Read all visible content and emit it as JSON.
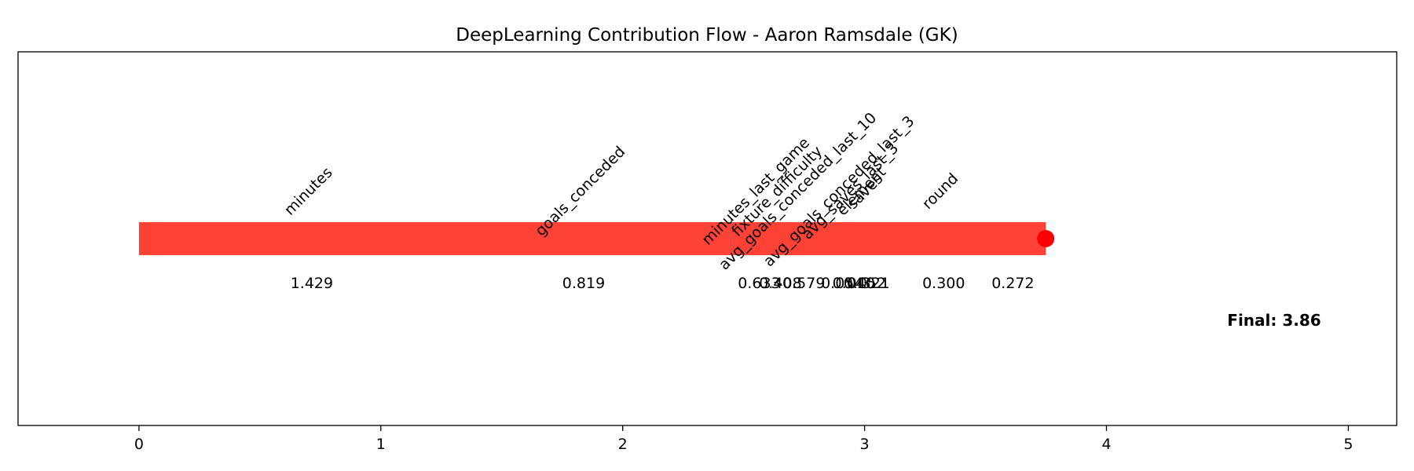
{
  "chart_data": {
    "type": "bar",
    "orientation": "horizontal-waterfall",
    "title": "DeepLearning Contribution Flow - Aaron Ramsdale (GK)",
    "xlabel": "",
    "ylabel": "",
    "xlim": [
      -0.5,
      5.2
    ],
    "xticks": [
      0,
      1,
      2,
      3,
      4,
      5
    ],
    "grid": false,
    "colors": {
      "positive": "#ff4136",
      "negative": "#0074d9",
      "marker": "#ff0000"
    },
    "steps": [
      {
        "feature": "minutes",
        "value": 1.429,
        "label": "1.429",
        "sign": "positive"
      },
      {
        "feature": "goals_conceded",
        "value": 0.819,
        "label": "0.819",
        "sign": "positive"
      },
      {
        "feature": "minutes_last_game",
        "value": 0.633,
        "label": "0.633",
        "sign": "positive"
      },
      {
        "feature": "avg_goals_conceded_last_3",
        "value": 0.054,
        "label": "0.054",
        "sign": "positive"
      },
      {
        "feature": "avg_saves_last_3",
        "value": 0.04,
        "label": "0.040",
        "sign": "positive"
      },
      {
        "feature": "element",
        "value": 0.052,
        "label": "0.052",
        "sign": "positive"
      },
      {
        "feature": "avg_goals_conceded_last_10",
        "value": -0.579,
        "label": "-0.579",
        "sign": "negative"
      },
      {
        "feature": "fixture_difficulty",
        "value": 0.408,
        "label": "0.408",
        "sign": "positive"
      },
      {
        "feature": "saves",
        "value": 0.321,
        "label": "0.321",
        "sign": "positive"
      },
      {
        "feature": "round",
        "value": 0.3,
        "label": "0.300",
        "sign": "positive"
      },
      {
        "feature": "",
        "value": 0.272,
        "label": "0.272",
        "sign": "positive"
      }
    ],
    "final_value": 3.86,
    "final_label": "Final: 3.86"
  }
}
